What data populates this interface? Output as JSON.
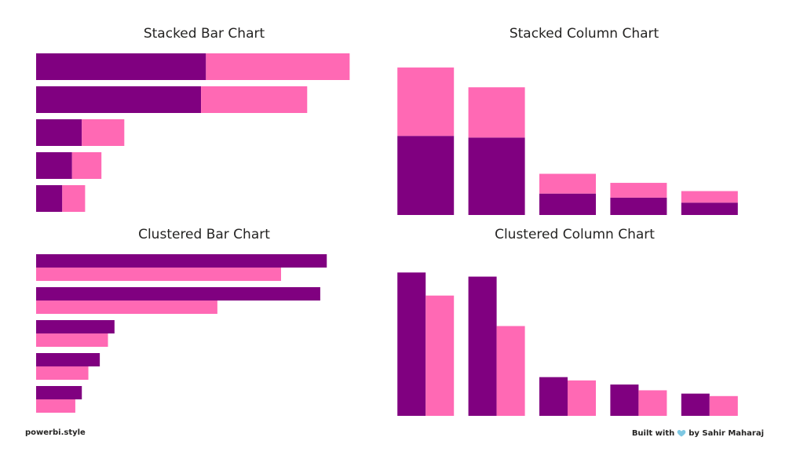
{
  "colors": {
    "series1": "#800080",
    "series2": "#ff69b4"
  },
  "footer": {
    "left": "powerbi.style",
    "built_with": "Built with",
    "heart_icon": "heart-icon",
    "author": "by Sahir Maharaj"
  },
  "chart_data": [
    {
      "type": "bar",
      "orientation": "horizontal",
      "stacked": true,
      "title": "Stacked Bar Chart",
      "grid": false,
      "legend": "none",
      "xlim": [
        0,
        100
      ],
      "series": [
        {
          "values": [
            52,
            50.5,
            14,
            11,
            8
          ]
        },
        {
          "values": [
            44,
            32.5,
            13,
            9,
            7
          ]
        }
      ]
    },
    {
      "type": "bar",
      "orientation": "vertical",
      "stacked": true,
      "title": "Stacked Column Chart",
      "grid": false,
      "legend": "none",
      "ylim": [
        0,
        100
      ],
      "series": [
        {
          "values": [
            48,
            47,
            13,
            10.5,
            7.5
          ]
        },
        {
          "values": [
            41.5,
            30.5,
            12,
            9,
            7
          ]
        }
      ]
    },
    {
      "type": "bar",
      "orientation": "horizontal",
      "stacked": false,
      "title": "Clustered Bar Chart",
      "grid": false,
      "legend": "none",
      "xlim": [
        0,
        100
      ],
      "series": [
        {
          "values": [
            89,
            87,
            24,
            19.5,
            14
          ]
        },
        {
          "values": [
            75,
            55.5,
            22,
            16,
            12
          ]
        }
      ]
    },
    {
      "type": "bar",
      "orientation": "vertical",
      "stacked": false,
      "title": "Clustered Column Chart",
      "grid": false,
      "legend": "none",
      "ylim": [
        0,
        100
      ],
      "series": [
        {
          "values": [
            87,
            84.5,
            23.5,
            19,
            13.5
          ]
        },
        {
          "values": [
            73,
            54.5,
            21.5,
            15.5,
            12
          ]
        }
      ]
    }
  ]
}
